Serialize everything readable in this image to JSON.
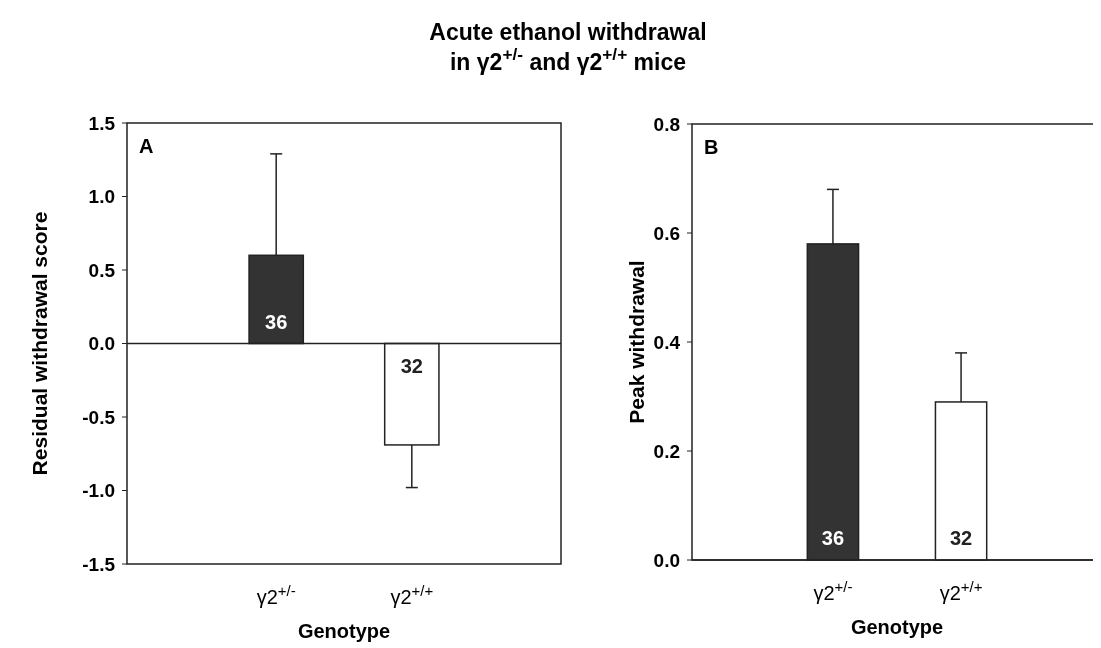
{
  "chart_data": [
    {
      "type": "bar",
      "title": "Acute ethanol withdrawal\nin γ2$^{+/-}$ and  γ2$^{+/+}$ mice",
      "xlabel": "Genotype",
      "ylabel": "Residual withdrawal score",
      "categories": [
        "γ2$^{+/-}$",
        "γ2$^{+/+}$"
      ],
      "values": [
        0.6,
        -0.69
      ],
      "colors": [
        "#333333",
        "#ffffff"
      ],
      "errors": [
        [
          0.6,
          1.29
        ],
        [
          -0.98,
          -0.69
        ]
      ],
      "ylim": [
        -1.5,
        1.5
      ],
      "yticks": [
        {
          "value": -1.5,
          "label": "-1.5"
        },
        {
          "value": -1.0,
          "label": "-1.0"
        },
        {
          "value": -0.5,
          "label": "-0.5"
        },
        {
          "value": 0,
          "label": "0.0"
        },
        {
          "value": 0.5,
          "label": "0.5"
        },
        {
          "value": 1.0,
          "label": "1.0"
        },
        {
          "value": 1.5,
          "label": "1.5"
        }
      ],
      "annotations": [
        "A",
        "36",
        "32"
      ]
    },
    {
      "type": "bar",
      "xlabel": "Genotype",
      "ylabel": "Peak withdrawal",
      "categories": [
        "γ2$^{+/-}$",
        "γ2$^{+/+}$"
      ],
      "values": [
        0.58,
        0.29
      ],
      "colors": [
        "#333333",
        "#ffffff"
      ],
      "errors": [
        [
          0.58,
          0.68
        ],
        [
          0.29,
          0.38
        ]
      ],
      "ylim": [
        0,
        0.8
      ],
      "yticks": [
        {
          "value": 0,
          "label": "0.0"
        },
        {
          "value": 0.2,
          "label": "0.2"
        },
        {
          "value": 0.4,
          "label": "0.4"
        },
        {
          "value": 0.6,
          "label": "0.6"
        },
        {
          "value": 0.8,
          "label": "0.8"
        }
      ],
      "annotations": [
        "B",
        "36",
        "32"
      ]
    }
  ]
}
